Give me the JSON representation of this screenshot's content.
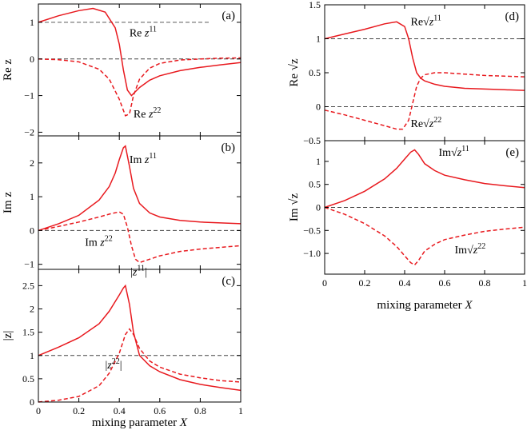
{
  "colors": {
    "series": "#e8191e",
    "reference": "#444444"
  },
  "chart_data": [
    {
      "id": "a",
      "type": "line",
      "panel_label": "(a)",
      "ylabel": "Re z",
      "xlabel": "",
      "xlim": [
        0,
        1
      ],
      "ylim": [
        -2.1,
        1.5
      ],
      "yticks": [
        1,
        0,
        -1,
        -2
      ],
      "ytick_labels": [
        "1",
        "0",
        "−1",
        "−2"
      ],
      "xticks": [
        0,
        0.2,
        0.4,
        0.6,
        0.8,
        1
      ],
      "xtick_labels": [
        "",
        "",
        "",
        "",
        "",
        ""
      ],
      "reference_lines": [
        {
          "y": 1,
          "x_start": 0,
          "x_end": 0.85
        },
        {
          "y": 0,
          "x_start": 0,
          "x_end": 1
        }
      ],
      "series": [
        {
          "name": "Re z11",
          "style": "solid",
          "x": [
            0,
            0.1,
            0.2,
            0.27,
            0.33,
            0.38,
            0.4,
            0.42,
            0.44,
            0.46,
            0.5,
            0.55,
            0.6,
            0.7,
            0.8,
            0.9,
            1.0
          ],
          "y": [
            1.0,
            1.18,
            1.32,
            1.38,
            1.28,
            0.85,
            0.4,
            -0.3,
            -0.85,
            -1.0,
            -0.78,
            -0.58,
            -0.46,
            -0.32,
            -0.23,
            -0.16,
            -0.1
          ]
        },
        {
          "name": "Re z22",
          "style": "dashed",
          "x": [
            0,
            0.1,
            0.2,
            0.3,
            0.35,
            0.4,
            0.43,
            0.45,
            0.47,
            0.5,
            0.55,
            0.6,
            0.7,
            0.8,
            0.9,
            1.0
          ],
          "y": [
            0.0,
            -0.02,
            -0.08,
            -0.28,
            -0.55,
            -1.1,
            -1.55,
            -1.5,
            -1.0,
            -0.55,
            -0.25,
            -0.12,
            -0.03,
            0.0,
            0.02,
            0.03
          ]
        }
      ],
      "annotations": [
        {
          "id": "a1",
          "prefix": "Re ",
          "var": "z",
          "sup": "11",
          "x": 0.45,
          "y": 0.62
        },
        {
          "id": "a2",
          "prefix": "Re ",
          "var": "z",
          "sup": "22",
          "x": 0.47,
          "y": -1.6
        }
      ]
    },
    {
      "id": "b",
      "type": "line",
      "panel_label": "(b)",
      "ylabel": "Im z",
      "xlabel": "",
      "xlim": [
        0,
        1
      ],
      "ylim": [
        -1.15,
        2.8
      ],
      "yticks": [
        2,
        1,
        0,
        -1
      ],
      "ytick_labels": [
        "2",
        "1",
        "0",
        "−1"
      ],
      "xticks": [
        0,
        0.2,
        0.4,
        0.6,
        0.8,
        1
      ],
      "xtick_labels": [
        "",
        "",
        "",
        "",
        "",
        ""
      ],
      "reference_lines": [
        {
          "y": 0,
          "x_start": 0,
          "x_end": 1
        }
      ],
      "series": [
        {
          "name": "Im z11",
          "style": "solid",
          "x": [
            0,
            0.1,
            0.2,
            0.3,
            0.35,
            0.38,
            0.4,
            0.42,
            0.43,
            0.45,
            0.47,
            0.5,
            0.55,
            0.6,
            0.7,
            0.8,
            1.0
          ],
          "y": [
            0.0,
            0.2,
            0.45,
            0.9,
            1.3,
            1.7,
            2.1,
            2.45,
            2.5,
            1.9,
            1.25,
            0.8,
            0.52,
            0.4,
            0.3,
            0.25,
            0.2
          ]
        },
        {
          "name": "Im z22",
          "style": "dashed",
          "x": [
            0,
            0.1,
            0.2,
            0.3,
            0.36,
            0.4,
            0.42,
            0.44,
            0.46,
            0.48,
            0.5,
            0.55,
            0.6,
            0.7,
            0.8,
            0.9,
            1.0
          ],
          "y": [
            0.0,
            0.12,
            0.25,
            0.4,
            0.5,
            0.55,
            0.48,
            0.1,
            -0.45,
            -0.85,
            -0.95,
            -0.85,
            -0.75,
            -0.62,
            -0.55,
            -0.5,
            -0.45
          ]
        }
      ],
      "annotations": [
        {
          "id": "b1",
          "prefix": "Im ",
          "var": "z",
          "sup": "11",
          "x": 0.45,
          "y": 2.0
        },
        {
          "id": "b2",
          "prefix": "Im ",
          "var": "z",
          "sup": "22",
          "x": 0.23,
          "y": -0.45
        }
      ]
    },
    {
      "id": "c",
      "type": "line",
      "panel_label": "(c)",
      "ylabel": "|z|",
      "xlabel": "mixing parameter X",
      "xlim": [
        0,
        1
      ],
      "ylim": [
        0,
        2.85
      ],
      "yticks": [
        2.5,
        2,
        1.5,
        1,
        0.5,
        0
      ],
      "ytick_labels": [
        "2.5",
        "2",
        "1.5",
        "1",
        "0.5",
        "0"
      ],
      "xticks": [
        0,
        0.2,
        0.4,
        0.6,
        0.8,
        1
      ],
      "xtick_labels": [
        "0",
        "0.2",
        "0.4",
        "0.6",
        "0.8",
        "1"
      ],
      "reference_lines": [
        {
          "y": 1,
          "x_start": 0,
          "x_end": 1
        }
      ],
      "series": [
        {
          "name": "|z11|",
          "style": "solid",
          "x": [
            0,
            0.1,
            0.2,
            0.3,
            0.35,
            0.4,
            0.42,
            0.43,
            0.45,
            0.47,
            0.5,
            0.55,
            0.6,
            0.7,
            0.8,
            0.9,
            1.0
          ],
          "y": [
            1.0,
            1.18,
            1.38,
            1.68,
            1.95,
            2.3,
            2.45,
            2.5,
            2.1,
            1.5,
            1.0,
            0.78,
            0.65,
            0.48,
            0.38,
            0.31,
            0.25
          ]
        },
        {
          "name": "|z22|",
          "style": "dashed",
          "x": [
            0,
            0.1,
            0.2,
            0.3,
            0.35,
            0.4,
            0.43,
            0.45,
            0.47,
            0.5,
            0.55,
            0.6,
            0.7,
            0.8,
            0.9,
            1.0
          ],
          "y": [
            0.0,
            0.04,
            0.12,
            0.35,
            0.62,
            1.05,
            1.45,
            1.57,
            1.45,
            1.15,
            0.88,
            0.75,
            0.6,
            0.52,
            0.46,
            0.43
          ]
        }
      ],
      "annotations": [
        {
          "id": "c1",
          "prefix": "|",
          "var": "z",
          "sup": "11",
          "suffix": "|",
          "x": 0.455,
          "y": 2.72
        },
        {
          "id": "c2",
          "prefix": "|",
          "var": "z",
          "sup": "22",
          "suffix": "|",
          "x": 0.33,
          "y": 0.72
        }
      ]
    },
    {
      "id": "d",
      "type": "line",
      "panel_label": "(d)",
      "ylabel": "Re √z",
      "xlabel": "",
      "xlim": [
        0,
        1
      ],
      "ylim": [
        -0.5,
        1.5
      ],
      "yticks": [
        1.5,
        1,
        0.5,
        0,
        -0.5
      ],
      "ytick_labels": [
        "1.5",
        "1",
        "0.5",
        "0",
        "−0.5"
      ],
      "xticks": [
        0,
        0.2,
        0.4,
        0.6,
        0.8,
        1
      ],
      "xtick_labels": [
        "",
        "",
        "",
        "",
        "",
        ""
      ],
      "reference_lines": [
        {
          "y": 1,
          "x_start": 0,
          "x_end": 1
        },
        {
          "y": 0,
          "x_start": 0,
          "x_end": 1
        }
      ],
      "series": [
        {
          "name": "Re sqrt(z11)",
          "style": "solid",
          "x": [
            0,
            0.1,
            0.2,
            0.3,
            0.36,
            0.4,
            0.42,
            0.44,
            0.46,
            0.48,
            0.5,
            0.55,
            0.6,
            0.7,
            0.8,
            0.9,
            1.0
          ],
          "y": [
            1.0,
            1.07,
            1.14,
            1.22,
            1.25,
            1.18,
            1.0,
            0.72,
            0.5,
            0.42,
            0.38,
            0.33,
            0.3,
            0.27,
            0.26,
            0.25,
            0.24
          ]
        },
        {
          "name": "Re sqrt(z22)",
          "style": "dashed",
          "x": [
            0,
            0.1,
            0.2,
            0.3,
            0.36,
            0.39,
            0.42,
            0.44,
            0.46,
            0.48,
            0.5,
            0.55,
            0.6,
            0.7,
            0.8,
            0.9,
            1.0
          ],
          "y": [
            -0.05,
            -0.12,
            -0.2,
            -0.28,
            -0.33,
            -0.33,
            -0.2,
            0.05,
            0.3,
            0.42,
            0.47,
            0.5,
            0.5,
            0.48,
            0.46,
            0.45,
            0.44
          ]
        }
      ],
      "annotations": [
        {
          "id": "d1",
          "prefix": "Re",
          "var": "z",
          "sup": "11",
          "sqrt": true,
          "x": 0.43,
          "y": 1.2
        },
        {
          "id": "d2",
          "prefix": "Re",
          "var": "z",
          "sup": "22",
          "sqrt": true,
          "x": 0.43,
          "y": -0.3
        }
      ]
    },
    {
      "id": "e",
      "type": "line",
      "panel_label": "(e)",
      "ylabel": "Im √z",
      "xlabel": "mixing parameter X",
      "xlim": [
        0,
        1
      ],
      "ylim": [
        -1.45,
        1.45
      ],
      "yticks": [
        1,
        0.5,
        0,
        -0.5,
        -1.0
      ],
      "ytick_labels": [
        "1",
        "0.5",
        "0",
        "−0.5",
        "−1.0"
      ],
      "xticks": [
        0,
        0.2,
        0.4,
        0.6,
        0.8,
        1
      ],
      "xtick_labels": [
        "0",
        "0.2",
        "0.4",
        "0.6",
        "0.8",
        "1"
      ],
      "reference_lines": [
        {
          "y": 0,
          "x_start": 0,
          "x_end": 1
        }
      ],
      "series": [
        {
          "name": "Im sqrt(z11)",
          "style": "solid",
          "x": [
            0,
            0.1,
            0.2,
            0.3,
            0.36,
            0.4,
            0.43,
            0.45,
            0.47,
            0.5,
            0.55,
            0.6,
            0.7,
            0.8,
            0.9,
            1.0
          ],
          "y": [
            0.0,
            0.15,
            0.35,
            0.62,
            0.85,
            1.05,
            1.2,
            1.25,
            1.15,
            0.95,
            0.8,
            0.7,
            0.6,
            0.52,
            0.47,
            0.43
          ]
        },
        {
          "name": "Im sqrt(z22)",
          "style": "dashed",
          "x": [
            0,
            0.1,
            0.2,
            0.3,
            0.36,
            0.4,
            0.43,
            0.45,
            0.47,
            0.5,
            0.55,
            0.6,
            0.7,
            0.8,
            0.9,
            1.0
          ],
          "y": [
            0.0,
            -0.15,
            -0.35,
            -0.62,
            -0.85,
            -1.05,
            -1.2,
            -1.25,
            -1.15,
            -0.95,
            -0.8,
            -0.7,
            -0.6,
            -0.52,
            -0.47,
            -0.43
          ]
        }
      ],
      "annotations": [
        {
          "id": "e1",
          "prefix": "Im",
          "var": "z",
          "sup": "11",
          "sqrt": true,
          "x": 0.57,
          "y": 1.12
        },
        {
          "id": "e2",
          "prefix": "Im",
          "var": "z",
          "sup": "22",
          "sqrt": true,
          "x": 0.65,
          "y": -1.0
        }
      ]
    }
  ]
}
